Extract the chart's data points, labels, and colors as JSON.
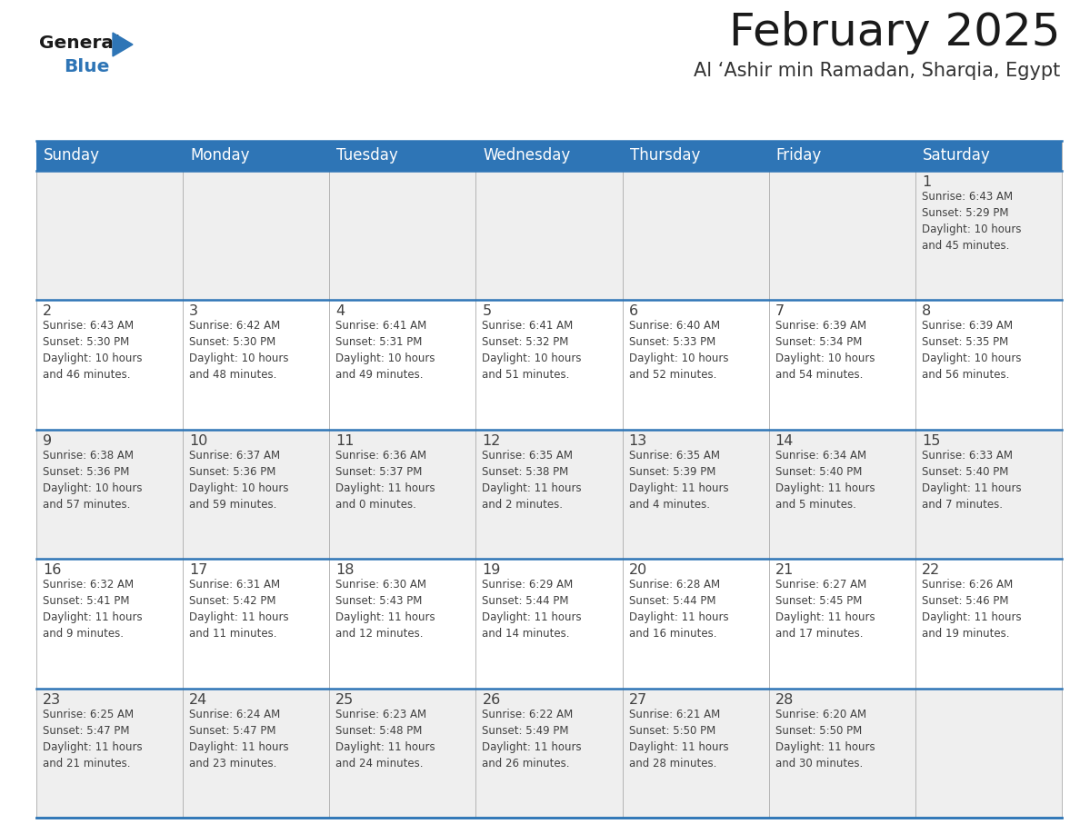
{
  "title": "February 2025",
  "subtitle": "Al ‘Ashir min Ramadan, Sharqia, Egypt",
  "days_of_week": [
    "Sunday",
    "Monday",
    "Tuesday",
    "Wednesday",
    "Thursday",
    "Friday",
    "Saturday"
  ],
  "header_bg": "#2E75B6",
  "header_text_color": "#FFFFFF",
  "cell_bg_odd": "#EFEFEF",
  "cell_bg_even": "#FFFFFF",
  "separator_color": "#2E75B6",
  "grid_color": "#AAAAAA",
  "text_color": "#404040",
  "title_color": "#1a1a1a",
  "subtitle_color": "#333333",
  "logo_general_color": "#1a1a1a",
  "logo_blue_color": "#2E75B6",
  "logo_triangle_color": "#2E75B6",
  "calendar": [
    [
      {
        "day": null,
        "info": null
      },
      {
        "day": null,
        "info": null
      },
      {
        "day": null,
        "info": null
      },
      {
        "day": null,
        "info": null
      },
      {
        "day": null,
        "info": null
      },
      {
        "day": null,
        "info": null
      },
      {
        "day": 1,
        "info": "Sunrise: 6:43 AM\nSunset: 5:29 PM\nDaylight: 10 hours\nand 45 minutes."
      }
    ],
    [
      {
        "day": 2,
        "info": "Sunrise: 6:43 AM\nSunset: 5:30 PM\nDaylight: 10 hours\nand 46 minutes."
      },
      {
        "day": 3,
        "info": "Sunrise: 6:42 AM\nSunset: 5:30 PM\nDaylight: 10 hours\nand 48 minutes."
      },
      {
        "day": 4,
        "info": "Sunrise: 6:41 AM\nSunset: 5:31 PM\nDaylight: 10 hours\nand 49 minutes."
      },
      {
        "day": 5,
        "info": "Sunrise: 6:41 AM\nSunset: 5:32 PM\nDaylight: 10 hours\nand 51 minutes."
      },
      {
        "day": 6,
        "info": "Sunrise: 6:40 AM\nSunset: 5:33 PM\nDaylight: 10 hours\nand 52 minutes."
      },
      {
        "day": 7,
        "info": "Sunrise: 6:39 AM\nSunset: 5:34 PM\nDaylight: 10 hours\nand 54 minutes."
      },
      {
        "day": 8,
        "info": "Sunrise: 6:39 AM\nSunset: 5:35 PM\nDaylight: 10 hours\nand 56 minutes."
      }
    ],
    [
      {
        "day": 9,
        "info": "Sunrise: 6:38 AM\nSunset: 5:36 PM\nDaylight: 10 hours\nand 57 minutes."
      },
      {
        "day": 10,
        "info": "Sunrise: 6:37 AM\nSunset: 5:36 PM\nDaylight: 10 hours\nand 59 minutes."
      },
      {
        "day": 11,
        "info": "Sunrise: 6:36 AM\nSunset: 5:37 PM\nDaylight: 11 hours\nand 0 minutes."
      },
      {
        "day": 12,
        "info": "Sunrise: 6:35 AM\nSunset: 5:38 PM\nDaylight: 11 hours\nand 2 minutes."
      },
      {
        "day": 13,
        "info": "Sunrise: 6:35 AM\nSunset: 5:39 PM\nDaylight: 11 hours\nand 4 minutes."
      },
      {
        "day": 14,
        "info": "Sunrise: 6:34 AM\nSunset: 5:40 PM\nDaylight: 11 hours\nand 5 minutes."
      },
      {
        "day": 15,
        "info": "Sunrise: 6:33 AM\nSunset: 5:40 PM\nDaylight: 11 hours\nand 7 minutes."
      }
    ],
    [
      {
        "day": 16,
        "info": "Sunrise: 6:32 AM\nSunset: 5:41 PM\nDaylight: 11 hours\nand 9 minutes."
      },
      {
        "day": 17,
        "info": "Sunrise: 6:31 AM\nSunset: 5:42 PM\nDaylight: 11 hours\nand 11 minutes."
      },
      {
        "day": 18,
        "info": "Sunrise: 6:30 AM\nSunset: 5:43 PM\nDaylight: 11 hours\nand 12 minutes."
      },
      {
        "day": 19,
        "info": "Sunrise: 6:29 AM\nSunset: 5:44 PM\nDaylight: 11 hours\nand 14 minutes."
      },
      {
        "day": 20,
        "info": "Sunrise: 6:28 AM\nSunset: 5:44 PM\nDaylight: 11 hours\nand 16 minutes."
      },
      {
        "day": 21,
        "info": "Sunrise: 6:27 AM\nSunset: 5:45 PM\nDaylight: 11 hours\nand 17 minutes."
      },
      {
        "day": 22,
        "info": "Sunrise: 6:26 AM\nSunset: 5:46 PM\nDaylight: 11 hours\nand 19 minutes."
      }
    ],
    [
      {
        "day": 23,
        "info": "Sunrise: 6:25 AM\nSunset: 5:47 PM\nDaylight: 11 hours\nand 21 minutes."
      },
      {
        "day": 24,
        "info": "Sunrise: 6:24 AM\nSunset: 5:47 PM\nDaylight: 11 hours\nand 23 minutes."
      },
      {
        "day": 25,
        "info": "Sunrise: 6:23 AM\nSunset: 5:48 PM\nDaylight: 11 hours\nand 24 minutes."
      },
      {
        "day": 26,
        "info": "Sunrise: 6:22 AM\nSunset: 5:49 PM\nDaylight: 11 hours\nand 26 minutes."
      },
      {
        "day": 27,
        "info": "Sunrise: 6:21 AM\nSunset: 5:50 PM\nDaylight: 11 hours\nand 28 minutes."
      },
      {
        "day": 28,
        "info": "Sunrise: 6:20 AM\nSunset: 5:50 PM\nDaylight: 11 hours\nand 30 minutes."
      },
      {
        "day": null,
        "info": null
      }
    ]
  ],
  "num_rows": 5,
  "num_cols": 7
}
